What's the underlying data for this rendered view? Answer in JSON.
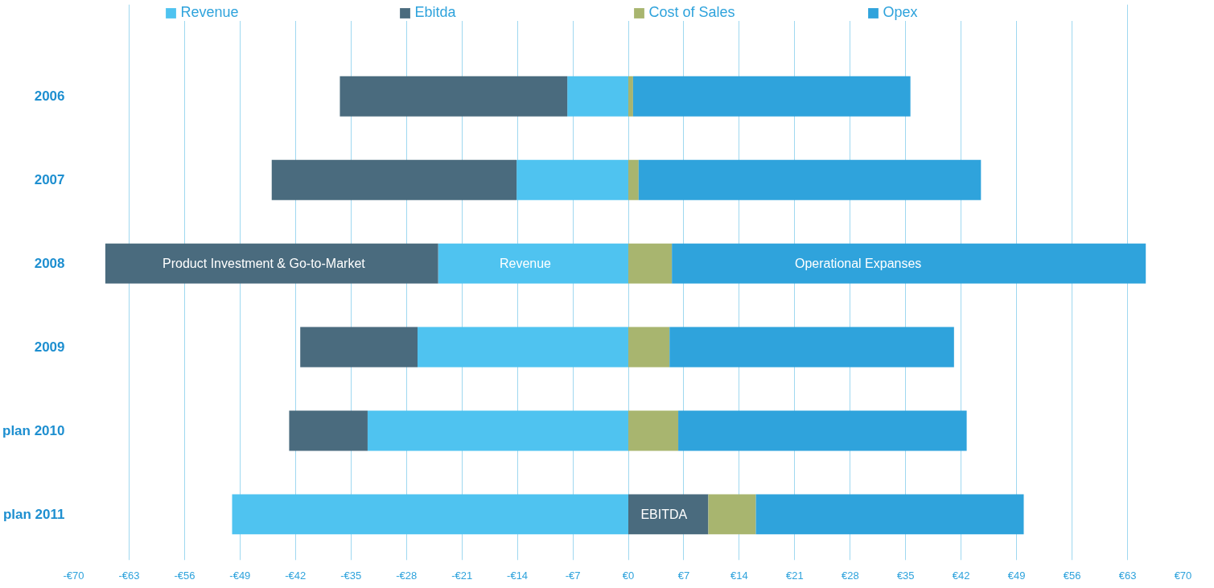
{
  "chart_data": {
    "type": "bar",
    "orientation": "horizontal",
    "stacked": true,
    "categories": [
      "2006",
      "2007",
      "2008",
      "2009",
      "plan 2010",
      "plan 2011"
    ],
    "series": [
      {
        "name": "Revenue",
        "color": "#4fc3f0",
        "values": [
          -7.7,
          -14.1,
          -24.0,
          -26.6,
          -32.9,
          -50.0
        ]
      },
      {
        "name": "Ebitda",
        "color": "#4a6b7e",
        "values": [
          -28.7,
          -30.9,
          -42.0,
          -14.8,
          -9.9,
          10.1
        ]
      },
      {
        "name": "Cost of Sales",
        "color": "#a8b56f",
        "values": [
          0.6,
          1.3,
          5.5,
          5.2,
          6.3,
          6.0
        ]
      },
      {
        "name": "Opex",
        "color": "#2fa3dc",
        "values": [
          35.0,
          43.2,
          59.8,
          35.9,
          36.4,
          33.8
        ]
      }
    ],
    "xlim": [
      -70,
      70
    ],
    "xticks": [
      {
        "value": -70,
        "label": "-€70"
      },
      {
        "value": -63,
        "label": "-€63"
      },
      {
        "value": -56,
        "label": "-€56"
      },
      {
        "value": -49,
        "label": "-€49"
      },
      {
        "value": -42,
        "label": "-€42"
      },
      {
        "value": -35,
        "label": "-€35"
      },
      {
        "value": -28,
        "label": "-€28"
      },
      {
        "value": -21,
        "label": "-€21"
      },
      {
        "value": -14,
        "label": "-€14"
      },
      {
        "value": -7,
        "label": "-€7"
      },
      {
        "value": 0,
        "label": "€0"
      },
      {
        "value": 7,
        "label": "€7"
      },
      {
        "value": 14,
        "label": "€14"
      },
      {
        "value": 21,
        "label": "€21"
      },
      {
        "value": 28,
        "label": "€28"
      },
      {
        "value": 35,
        "label": "€35"
      },
      {
        "value": 42,
        "label": "€42"
      },
      {
        "value": 49,
        "label": "€49"
      },
      {
        "value": 56,
        "label": "€56"
      },
      {
        "value": 63,
        "label": "€63"
      },
      {
        "value": 70,
        "label": "€70"
      }
    ],
    "grid": "x",
    "legend": "top",
    "annotations": [
      "Product Investment & Go-to-Market",
      "Revenue",
      "Operational Expanses",
      "EBITDA"
    ]
  }
}
